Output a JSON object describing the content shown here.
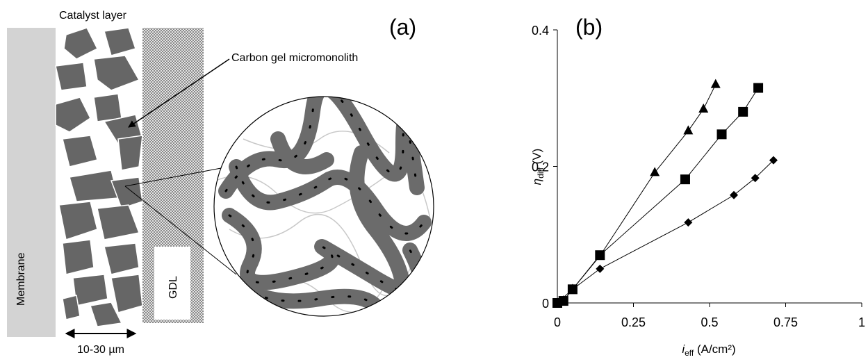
{
  "diagram": {
    "panel_label": "(a)",
    "catalyst_label": "Catalyst layer",
    "micromonolith_label": "Carbon gel micromonolith",
    "membrane_label": "Membrane",
    "gdl_label": "GDL",
    "thickness_label": "10-30 µm"
  },
  "chart_data": {
    "type": "line",
    "panel_label": "(b)",
    "xlabel": {
      "main": "i",
      "sub": "eff",
      "unit": " (A/cm²)"
    },
    "ylabel": {
      "main": "η",
      "sub": "diff",
      "unit": " (V)"
    },
    "xlim": [
      0,
      1
    ],
    "xticks": [
      0,
      0.25,
      0.5,
      0.75,
      1
    ],
    "ylim": [
      0,
      0.4
    ],
    "yticks": [
      0,
      0.2,
      0.4
    ],
    "series": [
      {
        "marker": "triangle",
        "color": "#000000",
        "x": [
          0,
          0.02,
          0.05,
          0.14,
          0.32,
          0.43,
          0.48,
          0.52
        ],
        "values": [
          0,
          0.003,
          0.02,
          0.069,
          0.191,
          0.252,
          0.284,
          0.32
        ]
      },
      {
        "marker": "square",
        "color": "#000000",
        "x": [
          0,
          0.02,
          0.05,
          0.14,
          0.42,
          0.54,
          0.61,
          0.66
        ],
        "values": [
          0,
          0.003,
          0.02,
          0.07,
          0.181,
          0.247,
          0.28,
          0.315
        ]
      },
      {
        "marker": "diamond",
        "color": "#000000",
        "x": [
          0,
          0.05,
          0.14,
          0.43,
          0.58,
          0.65,
          0.71
        ],
        "values": [
          0,
          0.02,
          0.05,
          0.118,
          0.158,
          0.183,
          0.209
        ]
      }
    ]
  }
}
